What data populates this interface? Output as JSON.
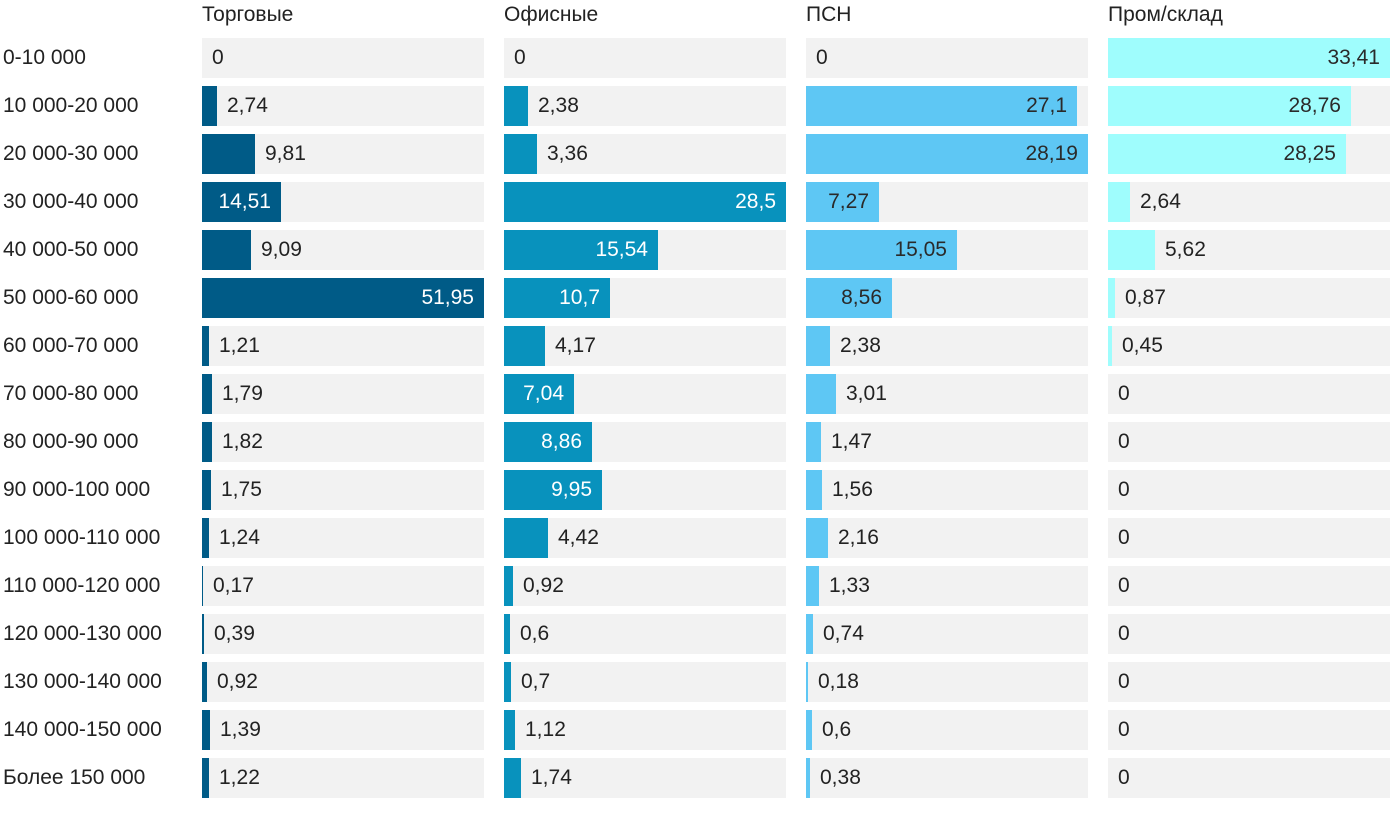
{
  "chart_data": {
    "type": "bar",
    "orientation": "horizontal",
    "categories": [
      "0-10 000",
      "10 000-20 000",
      "20 000-30 000",
      "30 000-40 000",
      "40 000-50 000",
      "50 000-60 000",
      "60 000-70 000",
      "70 000-80 000",
      "80 000-90 000",
      "90 000-100 000",
      "100 000-110 000",
      "110 000-120 000",
      "120 000-130 000",
      "130 000-140 000",
      "140 000-150 000",
      "Более 150 000"
    ],
    "series": [
      {
        "name": "Торговые",
        "color": "#005b87",
        "label_color_inside": "#ffffff",
        "values": [
          0,
          2.74,
          9.81,
          14.51,
          9.09,
          51.95,
          1.21,
          1.79,
          1.82,
          1.75,
          1.24,
          0.17,
          0.39,
          0.92,
          1.39,
          1.22
        ]
      },
      {
        "name": "Офисные",
        "color": "#0892bd",
        "label_color_inside": "#ffffff",
        "values": [
          0,
          2.38,
          3.36,
          28.5,
          15.54,
          10.7,
          4.17,
          7.04,
          8.86,
          9.95,
          4.42,
          0.92,
          0.6,
          0.7,
          1.12,
          1.74
        ]
      },
      {
        "name": "ПСН",
        "color": "#5ec7f4",
        "label_color_inside": "#2a2a2a",
        "values": [
          0,
          27.1,
          28.19,
          7.27,
          15.05,
          8.56,
          2.38,
          3.01,
          1.47,
          1.56,
          2.16,
          1.33,
          0.74,
          0.18,
          0.6,
          0.38
        ]
      },
      {
        "name": "Пром/склад",
        "color": "#9ffdfd",
        "label_color_inside": "#2a2a2a",
        "values": [
          33.41,
          28.76,
          28.25,
          2.64,
          5.62,
          0.87,
          0.45,
          0,
          0,
          0,
          0,
          0,
          0,
          0,
          0,
          0
        ]
      }
    ],
    "scale": "each column scaled to its own maximum",
    "track_color": "#f2f2f2",
    "decimal_separator": ","
  }
}
